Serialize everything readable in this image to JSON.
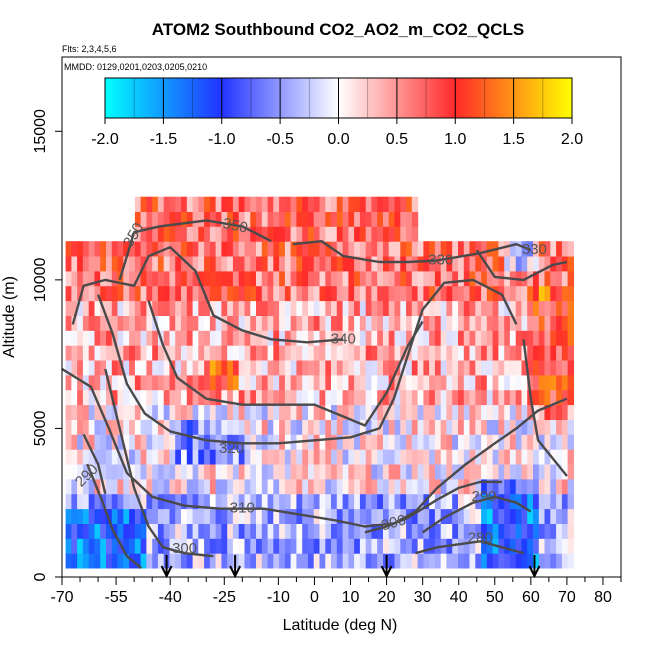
{
  "chart_data": {
    "type": "heatmap",
    "title": "ATOM2 Southbound CO2_AO2_m_CO2_QCLS",
    "flights_label": "Flts: 2,3,4,5,6",
    "dates_label": "MMDD: 0129,0201,0203,0205,0210",
    "xlabel": "Latitude (deg N)",
    "ylabel": "Altitude (m)",
    "xlim": [
      -70,
      85
    ],
    "ylim": [
      0,
      17500
    ],
    "x_ticks": [
      -70,
      -55,
      -40,
      -25,
      -10,
      0,
      10,
      20,
      30,
      40,
      50,
      60,
      70,
      80
    ],
    "x_tick_labels": [
      "-70",
      "-55",
      "-40",
      "-25",
      "-10",
      "0",
      "10",
      "20",
      "30",
      "40",
      "50",
      "60",
      "70",
      "80"
    ],
    "x_minor_ticks": [
      -65,
      -60,
      -50,
      -45,
      -35,
      -30,
      -20,
      -15,
      -5,
      5,
      15,
      25,
      35,
      45,
      55,
      65,
      75,
      85
    ],
    "y_ticks": [
      0,
      5000,
      10000,
      15000
    ],
    "y_tick_labels": [
      "0",
      "5000",
      "10000",
      "15000"
    ],
    "colorbar": {
      "range": [
        -2.0,
        2.0
      ],
      "tick_values": [
        -2.0,
        -1.5,
        -1.0,
        -0.5,
        0.0,
        0.5,
        1.0,
        1.5,
        2.0
      ],
      "tick_labels": [
        "-2.0",
        "-1.5",
        "-1.0",
        "-0.5",
        "0.0",
        "0.5",
        "1.0",
        "1.5",
        "2.0"
      ],
      "colors": [
        "#00ffff",
        "#2233ff",
        "#ffffff",
        "#ff2a2a",
        "#ffff00"
      ]
    },
    "vertical_profile_markers_lat": [
      -41,
      -22,
      20,
      61
    ],
    "contour_labels": [
      {
        "text": "350",
        "x": -50,
        "y": 11500,
        "angle": -60
      },
      {
        "text": "350",
        "x": -22,
        "y": 11800,
        "angle": 12
      },
      {
        "text": "330",
        "x": 35,
        "y": 10650,
        "angle": 0
      },
      {
        "text": "330",
        "x": 61,
        "y": 11000,
        "angle": 0
      },
      {
        "text": "340",
        "x": 8,
        "y": 8000,
        "angle": 0
      },
      {
        "text": "320",
        "x": -23,
        "y": 4300,
        "angle": 0
      },
      {
        "text": "310",
        "x": -20,
        "y": 2300,
        "angle": 0
      },
      {
        "text": "300",
        "x": -36,
        "y": 950,
        "angle": 0
      },
      {
        "text": "300",
        "x": 22,
        "y": 1800,
        "angle": -15
      },
      {
        "text": "290",
        "x": -63,
        "y": 3400,
        "angle": -45
      },
      {
        "text": "290",
        "x": 47,
        "y": 2700,
        "angle": 0
      },
      {
        "text": "280",
        "x": 46,
        "y": 1300,
        "angle": 0
      }
    ],
    "contours": [
      {
        "level": 350,
        "points": [
          [
            -54,
            10000
          ],
          [
            -50,
            11600
          ],
          [
            -43,
            11800
          ],
          [
            -30,
            12000
          ],
          [
            -20,
            11800
          ],
          [
            -12,
            11300
          ]
        ]
      },
      {
        "level": 340,
        "points": [
          [
            -67,
            8500
          ],
          [
            -64,
            9800
          ],
          [
            -58,
            10000
          ],
          [
            -50,
            9800
          ],
          [
            -46,
            10800
          ],
          [
            -40,
            11100
          ],
          [
            -33,
            10300
          ],
          [
            -28,
            8800
          ],
          [
            -20,
            8300
          ],
          [
            -12,
            8000
          ],
          [
            -2,
            7900
          ],
          [
            8,
            8000
          ]
        ]
      },
      {
        "level": 330,
        "points": [
          [
            -6,
            11200
          ],
          [
            2,
            11300
          ],
          [
            8,
            10800
          ],
          [
            18,
            10600
          ],
          [
            26,
            10600
          ],
          [
            34,
            10650
          ],
          [
            46,
            10900
          ],
          [
            56,
            11200
          ],
          [
            60,
            11000
          ]
        ]
      },
      {
        "level": 330,
        "points": [
          [
            45,
            11000
          ],
          [
            50,
            10100
          ],
          [
            58,
            10000
          ],
          [
            66,
            10500
          ],
          [
            70,
            10600
          ]
        ]
      },
      {
        "level": 320,
        "points": [
          [
            -60,
            9500
          ],
          [
            -56,
            8200
          ],
          [
            -52,
            6500
          ],
          [
            -47,
            5500
          ],
          [
            -40,
            4900
          ],
          [
            -30,
            4600
          ],
          [
            -20,
            4500
          ],
          [
            -10,
            4500
          ],
          [
            0,
            4600
          ],
          [
            10,
            4700
          ],
          [
            18,
            5000
          ],
          [
            22,
            6000
          ],
          [
            26,
            7500
          ],
          [
            30,
            9000
          ],
          [
            36,
            9900
          ],
          [
            44,
            10000
          ],
          [
            52,
            9500
          ],
          [
            56,
            8500
          ]
        ]
      },
      {
        "level": 320,
        "points": [
          [
            -46,
            9300
          ],
          [
            -42,
            7800
          ],
          [
            -38,
            6700
          ],
          [
            -30,
            6000
          ],
          [
            -20,
            5800
          ],
          [
            -10,
            5800
          ],
          [
            0,
            5800
          ],
          [
            8,
            5400
          ],
          [
            14,
            5100
          ],
          [
            20,
            6200
          ],
          [
            26,
            7800
          ],
          [
            30,
            8600
          ]
        ]
      },
      {
        "level": 310,
        "points": [
          [
            -70,
            7000
          ],
          [
            -62,
            6400
          ],
          [
            -57,
            5000
          ],
          [
            -52,
            3500
          ],
          [
            -45,
            2700
          ],
          [
            -36,
            2400
          ],
          [
            -26,
            2300
          ],
          [
            -14,
            2300
          ],
          [
            -4,
            2100
          ],
          [
            6,
            1900
          ],
          [
            14,
            1700
          ],
          [
            22,
            1800
          ],
          [
            28,
            2200
          ],
          [
            34,
            3000
          ],
          [
            42,
            3800
          ],
          [
            50,
            4500
          ],
          [
            56,
            5000
          ],
          [
            62,
            5600
          ],
          [
            70,
            6000
          ]
        ]
      },
      {
        "level": 310,
        "points": [
          [
            -64,
            4800
          ],
          [
            -60,
            3800
          ],
          [
            -58,
            2800
          ]
        ]
      },
      {
        "level": 300,
        "points": [
          [
            -58,
            7000
          ],
          [
            -54,
            5000
          ],
          [
            -50,
            3000
          ],
          [
            -46,
            1700
          ],
          [
            -42,
            1000
          ],
          [
            -36,
            800
          ],
          [
            -28,
            700
          ]
        ]
      },
      {
        "level": 300,
        "points": [
          [
            14,
            1500
          ],
          [
            20,
            1700
          ],
          [
            26,
            2000
          ],
          [
            34,
            2600
          ],
          [
            40,
            3000
          ],
          [
            46,
            3200
          ],
          [
            52,
            3200
          ]
        ]
      },
      {
        "level": 290,
        "points": [
          [
            -63,
            3800
          ],
          [
            -59,
            2600
          ],
          [
            -56,
            1600
          ],
          [
            -52,
            700
          ],
          [
            -48,
            300
          ]
        ]
      },
      {
        "level": 290,
        "points": [
          [
            30,
            1500
          ],
          [
            36,
            2000
          ],
          [
            44,
            2500
          ],
          [
            50,
            2700
          ],
          [
            56,
            2500
          ],
          [
            60,
            2200
          ]
        ]
      },
      {
        "level": 280,
        "points": [
          [
            28,
            800
          ],
          [
            34,
            1000
          ],
          [
            40,
            1100
          ],
          [
            46,
            1200
          ],
          [
            52,
            1000
          ],
          [
            58,
            800
          ]
        ]
      },
      {
        "level": 320,
        "points": [
          [
            58,
            8000
          ],
          [
            60,
            6000
          ],
          [
            62,
            4600
          ],
          [
            66,
            4000
          ],
          [
            70,
            3400
          ]
        ]
      }
    ],
    "data_extent": {
      "lat_range": [
        -69,
        71
      ],
      "alt_range": [
        300,
        12500
      ]
    }
  }
}
